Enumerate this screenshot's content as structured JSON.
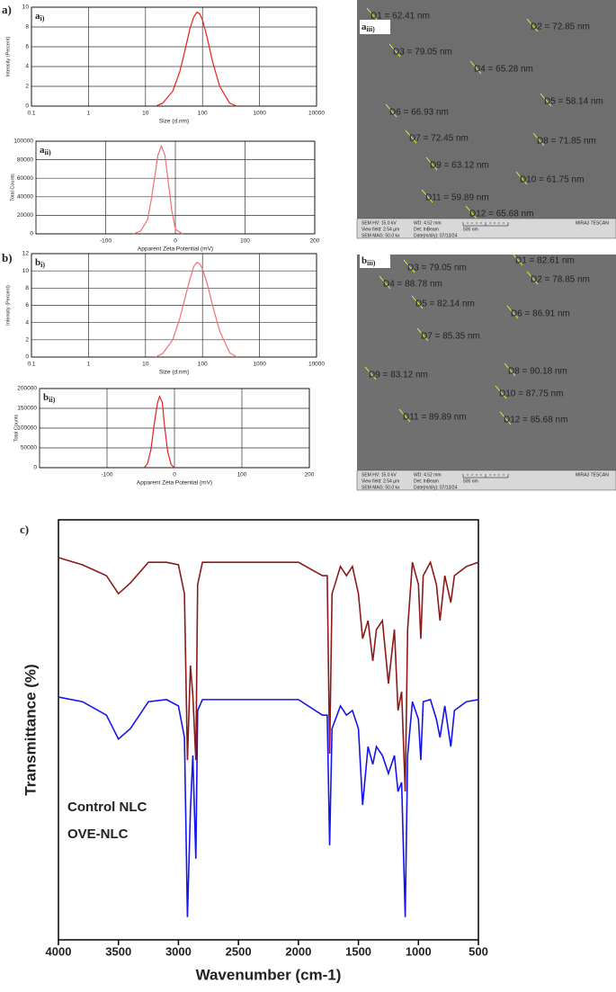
{
  "figure_labels": [
    "a)",
    "b)",
    "c)"
  ],
  "chart_data": [
    {
      "type": "line",
      "panel": {
        "letter": "a",
        "sub": "i)"
      },
      "xscale": "log",
      "grid": true,
      "color": "#e8201c",
      "xlabel": "Size (d.nm)",
      "ylabel": "Intensity (Percent)",
      "xlim": [
        0.1,
        10000
      ],
      "xticks": [
        0.1,
        1,
        10,
        100,
        1000,
        10000
      ],
      "ylim": [
        0,
        10
      ],
      "yticks": [
        0,
        2,
        4,
        6,
        8,
        10
      ],
      "x": [
        15,
        20,
        30,
        40,
        50,
        60,
        70,
        80,
        90,
        100,
        120,
        150,
        200,
        300,
        400
      ],
      "values": [
        0,
        0.3,
        1.5,
        3.5,
        5.8,
        7.8,
        9,
        9.5,
        9.3,
        8.7,
        7,
        4.5,
        2,
        0.3,
        0
      ]
    },
    {
      "type": "line",
      "panel": {
        "letter": "a",
        "sub": "ii)"
      },
      "grid": true,
      "color": "#f07070",
      "xlabel": "Apparent Zeta Potential (mV)",
      "ylabel": "Total Counts",
      "xlim": [
        -200,
        200
      ],
      "xticks": [
        -100,
        0,
        100,
        200
      ],
      "ylim": [
        0,
        100000
      ],
      "yticks": [
        0,
        20000,
        40000,
        60000,
        80000,
        100000
      ],
      "x": [
        -60,
        -50,
        -40,
        -35,
        -30,
        -25,
        -20,
        -15,
        -10,
        -5,
        0,
        10
      ],
      "values": [
        0,
        3000,
        15000,
        35000,
        60000,
        85000,
        95000,
        85000,
        55000,
        25000,
        5000,
        0
      ]
    },
    {
      "type": "line",
      "panel": {
        "letter": "b",
        "sub": "i)"
      },
      "xscale": "log",
      "grid": true,
      "color": "#f07070",
      "xlabel": "Size (d.nm)",
      "ylabel": "Intensity (Percent)",
      "xlim": [
        0.1,
        10000
      ],
      "xticks": [
        0.1,
        1,
        10,
        100,
        1000,
        10000
      ],
      "ylim": [
        0,
        12
      ],
      "yticks": [
        0,
        2,
        4,
        6,
        8,
        10,
        12
      ],
      "x": [
        15,
        20,
        30,
        40,
        50,
        60,
        70,
        80,
        90,
        100,
        120,
        150,
        200,
        300,
        400
      ],
      "values": [
        0,
        0.4,
        2,
        4.5,
        7,
        9,
        10.5,
        11,
        10.8,
        10.2,
        8.6,
        6,
        3,
        0.5,
        0
      ]
    },
    {
      "type": "line",
      "panel": {
        "letter": "b",
        "sub": "ii)"
      },
      "grid": true,
      "color": "#e8201c",
      "xlabel": "Apparent Zeta Potential (mV)",
      "ylabel": "Total Counts",
      "xlim": [
        -200,
        200
      ],
      "xticks": [
        -100,
        0,
        100,
        200
      ],
      "ylim": [
        0,
        200000
      ],
      "yticks": [
        0,
        50000,
        100000,
        150000,
        200000
      ],
      "x": [
        -45,
        -40,
        -35,
        -30,
        -25,
        -22,
        -18,
        -15,
        -10,
        -5,
        0
      ],
      "values": [
        0,
        10000,
        45000,
        110000,
        165000,
        180000,
        165000,
        110000,
        40000,
        8000,
        0
      ]
    },
    {
      "type": "line",
      "grid": false,
      "xlabel": "Wavenumber (cm-1)",
      "ylabel": "Transmittance (%)",
      "xlim": [
        4000,
        500
      ],
      "xticks": [
        4000,
        3500,
        3000,
        2500,
        2000,
        1500,
        1000,
        500
      ],
      "ylim": [
        0,
        100
      ],
      "x": [
        4000,
        3800,
        3600,
        3500,
        3400,
        3250,
        3100,
        3000,
        2950,
        2925,
        2900,
        2880,
        2855,
        2840,
        2800,
        2500,
        2000,
        1800,
        1760,
        1740,
        1720,
        1650,
        1600,
        1550,
        1500,
        1465,
        1420,
        1380,
        1350,
        1300,
        1250,
        1200,
        1170,
        1140,
        1110,
        1090,
        1050,
        1000,
        980,
        960,
        900,
        850,
        820,
        780,
        730,
        700,
        600,
        500
      ],
      "series": [
        {
          "name": "Control NLC",
          "color": "#1414f0",
          "values": [
            57.8,
            56.7,
            53.5,
            47.8,
            50.3,
            56.7,
            57.2,
            55.7,
            48.2,
            5.4,
            31.0,
            43.9,
            19.3,
            54.6,
            57.2,
            57.2,
            57.2,
            53.5,
            53.5,
            22.5,
            50.3,
            55.7,
            53.5,
            54.6,
            50.3,
            32.1,
            46.0,
            41.8,
            46.0,
            43.9,
            39.6,
            43.9,
            35.3,
            37.5,
            5.4,
            43.9,
            56.7,
            52.5,
            42.8,
            56.7,
            57.2,
            52.5,
            48.2,
            55.7,
            46.0,
            54.6,
            56.7,
            57.2
          ]
        },
        {
          "name": "OVE-NLC",
          "color": "#8b1a1a",
          "values": [
            91.0,
            89.3,
            86.7,
            82.4,
            85.0,
            89.9,
            89.9,
            89.3,
            82.4,
            42.8,
            65.3,
            58.2,
            42.8,
            84.6,
            89.9,
            89.9,
            89.9,
            86.7,
            86.7,
            44.3,
            82.4,
            88.9,
            86.7,
            88.9,
            82.4,
            71.7,
            76.0,
            66.4,
            73.9,
            76.0,
            61.0,
            73.9,
            54.6,
            59.1,
            35.3,
            73.9,
            89.9,
            84.6,
            71.7,
            86.7,
            89.9,
            84.6,
            76.0,
            86.7,
            80.3,
            86.7,
            88.9,
            89.9
          ]
        }
      ]
    }
  ],
  "sem_images": [
    {
      "letter": "a",
      "sub": "iii)",
      "measurements": [
        "D1 = 62.41 nm",
        "D2 = 72.85 nm",
        "D3 = 79.05 nm",
        "D4 = 65.28 nm",
        "D5 = 58.14 nm",
        "D6 = 66.93 nm",
        "D7 = 72.45 nm",
        "D8 = 71.85 nm",
        "D9 = 63.12 nm",
        "D10 = 61.75 nm",
        "D11 = 59.89 nm",
        "D12 = 65.68 nm"
      ],
      "info": [
        "SEM HV: 15.0 kV",
        "WD: 4.52 mm",
        "MIRA3 TESCAN",
        "View field: 2.54 µm",
        "Det: InBeam",
        "500 nm",
        "SEM MAG: 50.0 kx",
        "Date(m/d/y): 07/13/24"
      ]
    },
    {
      "letter": "b",
      "sub": "iii)",
      "measurements": [
        "D1 = 82.61 nm",
        "D2 = 78.85 nm",
        "D3 = 79.05 nm",
        "D4 = 88.78 nm",
        "D5 = 82.14 nm",
        "D6 = 86.91 nm",
        "D7 = 85.35 nm",
        "D8 = 90.18 nm",
        "D9 = 83.12 nm",
        "D10 = 87.75 nm",
        "D11 = 89.89 nm",
        "D12 = 85.68 nm"
      ],
      "info": [
        "SEM HV: 15.0 kV",
        "WD: 4.52 mm",
        "MIRA3 TESCAN",
        "View field: 2.54 µm",
        "Det: InBeam",
        "500 nm",
        "SEM MAG: 50.0 kx",
        "Date(m/d/y): 07/13/24"
      ]
    }
  ]
}
